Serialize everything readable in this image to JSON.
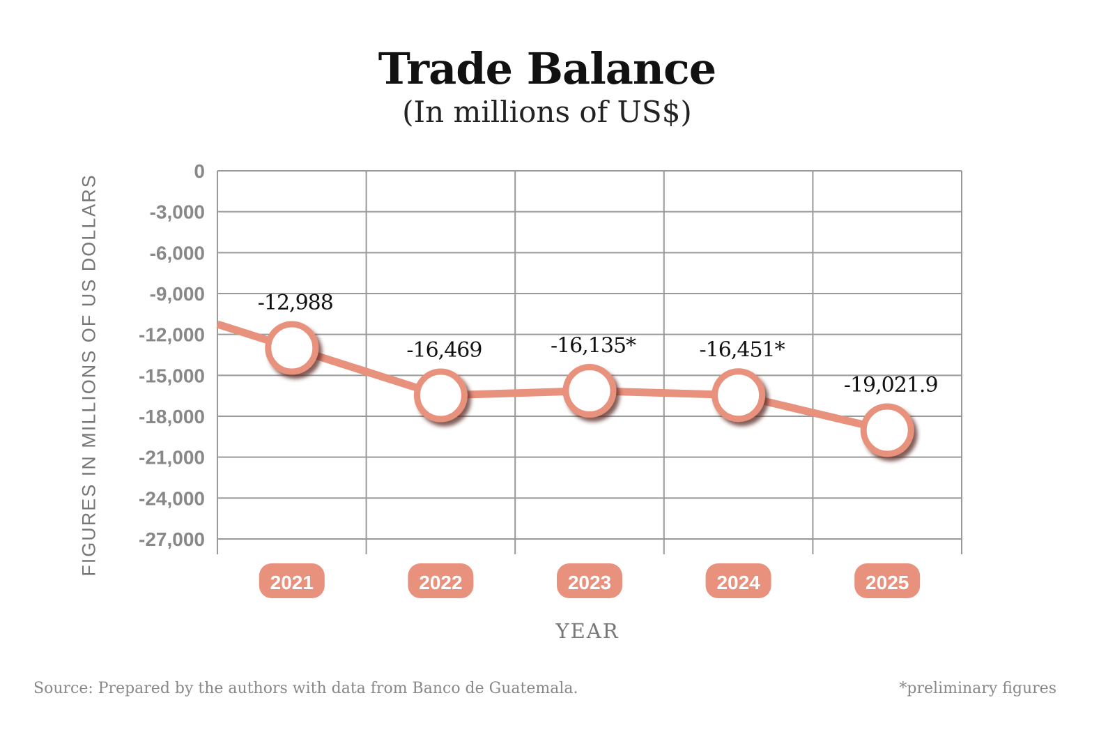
{
  "chart_data": {
    "type": "line",
    "title": "Trade Balance",
    "subtitle": "(In millions of US$)",
    "xlabel": "YEAR",
    "ylabel": "FIGURES IN MILLIONS OF US DOLLARS",
    "categories": [
      "2021",
      "2022",
      "2023",
      "2024",
      "2025"
    ],
    "values": [
      -12988,
      -16469,
      -16135,
      -16451,
      -19021.9
    ],
    "data_labels": [
      "-12,988",
      "-16,469",
      "-16,135*",
      "-16,451*",
      "-19,021.9"
    ],
    "yticks": [
      0,
      -3000,
      -6000,
      -9000,
      -12000,
      -15000,
      -18000,
      -21000,
      -24000,
      -27000
    ],
    "ytick_labels": [
      "0",
      "-3,000",
      "-6,000",
      "-9,000",
      "-12,000",
      "-15,000",
      "-18,000",
      "-21,000",
      "-24,000",
      "-27,000"
    ],
    "ylim": [
      -27000,
      0
    ],
    "grid": true,
    "colors": {
      "line": "#e8917d",
      "grid": "#999999",
      "pill": "#e8917d"
    }
  },
  "footer": {
    "source": "Source: Prepared by the authors with data from Banco de Guatemala.",
    "note": "*preliminary figures"
  }
}
